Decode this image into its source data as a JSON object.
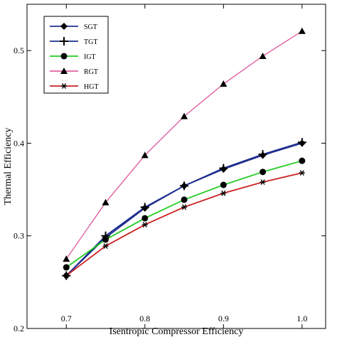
{
  "chart_data": {
    "type": "line",
    "xlabel": "Isentropic Compressor Efficiency",
    "ylabel": "Thermal Efficiency",
    "xlim": [
      0.65,
      1.03
    ],
    "ylim": [
      0.2,
      0.55
    ],
    "xticks": [
      "0.7",
      "0.8",
      "0.9",
      "1.0"
    ],
    "xtick_values": [
      0.7,
      0.8,
      0.9,
      1.0
    ],
    "yticks": [
      "0.2",
      "0.3",
      "0.4",
      "0.5"
    ],
    "ytick_values": [
      0.2,
      0.3,
      0.4,
      0.5
    ],
    "grid": false,
    "legend_position": "top-left",
    "x": [
      0.7,
      0.75,
      0.8,
      0.85,
      0.9,
      0.95,
      1.0
    ],
    "series": [
      {
        "name": "SGT",
        "color": "#1f2f8f",
        "marker": "diamond",
        "values": [
          0.257,
          0.298,
          0.33,
          0.354,
          0.372,
          0.387,
          0.4
        ]
      },
      {
        "name": "TGT",
        "color": "#1f2f8f",
        "marker": "plus",
        "values": [
          0.257,
          0.3,
          0.331,
          0.354,
          0.373,
          0.388,
          0.401
        ]
      },
      {
        "name": "IGT",
        "color": "#22cc22",
        "marker": "circle",
        "values": [
          0.266,
          0.296,
          0.319,
          0.339,
          0.355,
          0.369,
          0.381
        ]
      },
      {
        "name": "RGT",
        "color": "#e060a0",
        "marker": "triangle",
        "values": [
          0.275,
          0.336,
          0.387,
          0.429,
          0.464,
          0.494,
          0.521
        ]
      },
      {
        "name": "HGT",
        "color": "#cc2222",
        "marker": "asterisk",
        "values": [
          0.257,
          0.289,
          0.312,
          0.331,
          0.346,
          0.358,
          0.368
        ]
      }
    ]
  }
}
